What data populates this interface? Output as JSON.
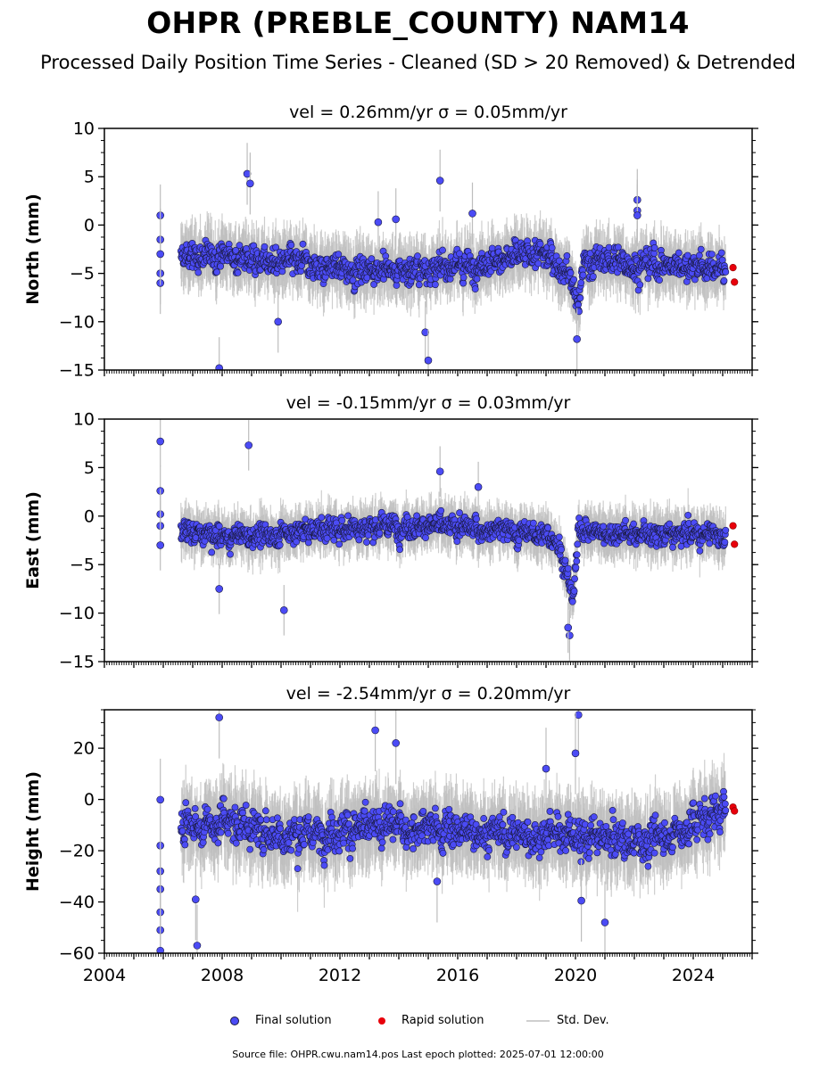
{
  "title": "OHPR (PREBLE_COUNTY) NAM14",
  "subtitle": "Processed Daily Position Time Series - Cleaned (SD > 20 Removed) & Detrended",
  "footer": "Source file: OHPR.cwu.nam14.pos  Last epoch plotted: 2025-07-01 12:00:00",
  "legend": {
    "final": "Final solution",
    "rapid": "Rapid solution",
    "std": "Std. Dev."
  },
  "colors": {
    "final": "#4b4bf5",
    "final_edge": "#1a1a40",
    "rapid": "#e8000b",
    "std": "#bdbdbd"
  },
  "chart_data": [
    {
      "type": "scatter",
      "title": "vel = 0.26mm/yr   σ = 0.05mm/yr",
      "ylabel": "North (mm)",
      "xlim": [
        2004,
        2026
      ],
      "ylim": [
        -15,
        10
      ],
      "yticks": [
        -15,
        -10,
        -5,
        0,
        5,
        10
      ],
      "xticks": [
        "2004",
        "2008",
        "2012",
        "2016",
        "2020",
        "2024"
      ],
      "series": [
        {
          "name": "Final solution",
          "x": [
            2005.9,
            2005.9,
            2005.9,
            2005.9,
            2005.9,
            2007.9,
            2008.85,
            2008.95,
            2013.9,
            2014.9,
            2015.0,
            2015.4,
            2020.05,
            2022.1,
            2022.1,
            2022.1,
            2016.5,
            2013.3,
            2009.9
          ],
          "y": [
            1.0,
            -1.5,
            -5.0,
            -6.0,
            -3.0,
            -14.8,
            5.3,
            4.3,
            0.6,
            -11.1,
            -14.0,
            4.6,
            -11.8,
            2.6,
            1.5,
            1.0,
            1.2,
            0.3,
            -10.0
          ]
        },
        {
          "name": "Rapid solution",
          "x": [
            2025.35,
            2025.4
          ],
          "y": [
            -4.4,
            -5.9
          ]
        }
      ],
      "profile": [
        [
          2006.6,
          -3.5
        ],
        [
          2008.0,
          -3.0
        ],
        [
          2010.0,
          -3.8
        ],
        [
          2012.0,
          -4.5
        ],
        [
          2014.0,
          -4.7
        ],
        [
          2016.0,
          -4.3
        ],
        [
          2018.0,
          -3.2
        ],
        [
          2019.0,
          -3.0
        ],
        [
          2019.8,
          -5.0
        ],
        [
          2020.1,
          -8.5
        ],
        [
          2020.3,
          -3.5
        ],
        [
          2022.0,
          -4.0
        ],
        [
          2024.0,
          -4.2
        ],
        [
          2025.1,
          -4.6
        ]
      ],
      "spread": 1.6
    },
    {
      "type": "scatter",
      "title": "vel = -0.15mm/yr   σ = 0.03mm/yr",
      "ylabel": "East (mm)",
      "xlim": [
        2004,
        2026
      ],
      "ylim": [
        -15,
        10
      ],
      "yticks": [
        -15,
        -10,
        -5,
        0,
        5,
        10
      ],
      "xticks": [
        "2004",
        "2008",
        "2012",
        "2016",
        "2020",
        "2024"
      ],
      "series": [
        {
          "name": "Final solution",
          "x": [
            2005.9,
            2005.9,
            2005.9,
            2005.9,
            2005.9,
            2007.9,
            2008.9,
            2010.1,
            2015.4,
            2016.7,
            2019.8,
            2019.75
          ],
          "y": [
            7.7,
            2.6,
            0.2,
            -1.0,
            -3.0,
            -7.5,
            7.3,
            -9.7,
            4.6,
            3.0,
            -12.3,
            -11.5
          ]
        },
        {
          "name": "Rapid solution",
          "x": [
            2025.35,
            2025.4
          ],
          "y": [
            -1.0,
            -2.9
          ]
        }
      ],
      "profile": [
        [
          2006.6,
          -1.5
        ],
        [
          2008.0,
          -2.3
        ],
        [
          2010.0,
          -1.8
        ],
        [
          2012.0,
          -1.3
        ],
        [
          2014.0,
          -1.0
        ],
        [
          2016.0,
          -1.2
        ],
        [
          2018.0,
          -1.6
        ],
        [
          2019.3,
          -2.2
        ],
        [
          2019.6,
          -4.5
        ],
        [
          2019.9,
          -8.5
        ],
        [
          2020.0,
          -6.0
        ],
        [
          2020.1,
          -1.5
        ],
        [
          2022.0,
          -1.8
        ],
        [
          2024.0,
          -2.0
        ],
        [
          2025.1,
          -1.9
        ]
      ],
      "spread": 1.3
    },
    {
      "type": "scatter",
      "title": "vel = -2.54mm/yr   σ = 0.20mm/yr",
      "ylabel": "Height (mm)",
      "xlim": [
        2004,
        2026
      ],
      "ylim": [
        -60,
        35
      ],
      "yticks": [
        -60,
        -40,
        -20,
        0,
        20
      ],
      "xticks": [
        "2004",
        "2008",
        "2012",
        "2016",
        "2020",
        "2024"
      ],
      "series": [
        {
          "name": "Final solution",
          "x": [
            2005.9,
            2005.9,
            2005.9,
            2005.9,
            2005.9,
            2005.9,
            2005.9,
            2007.9,
            2007.1,
            2007.15,
            2013.2,
            2013.9,
            2020.1,
            2020.2,
            2021.0,
            2015.3,
            2020.0,
            2019.0
          ],
          "y": [
            -0.1,
            -18.0,
            -28.0,
            -35.0,
            -44.0,
            -51.0,
            -59.0,
            32.0,
            -39.0,
            -57.0,
            27.0,
            22.0,
            33.0,
            -39.5,
            -48.0,
            -32.0,
            18.0,
            12.0
          ]
        },
        {
          "name": "Rapid solution",
          "x": [
            2025.35,
            2025.4
          ],
          "y": [
            -3.0,
            -4.5
          ]
        }
      ],
      "profile": [
        [
          2006.6,
          -12.0
        ],
        [
          2008.0,
          -8.0
        ],
        [
          2010.0,
          -14.0
        ],
        [
          2012.0,
          -12.0
        ],
        [
          2014.0,
          -11.0
        ],
        [
          2016.0,
          -12.0
        ],
        [
          2018.0,
          -14.0
        ],
        [
          2019.5,
          -12.0
        ],
        [
          2020.5,
          -15.0
        ],
        [
          2022.0,
          -17.0
        ],
        [
          2023.5,
          -13.0
        ],
        [
          2024.5,
          -6.0
        ],
        [
          2025.1,
          -4.0
        ]
      ],
      "spread": 8.0
    }
  ]
}
